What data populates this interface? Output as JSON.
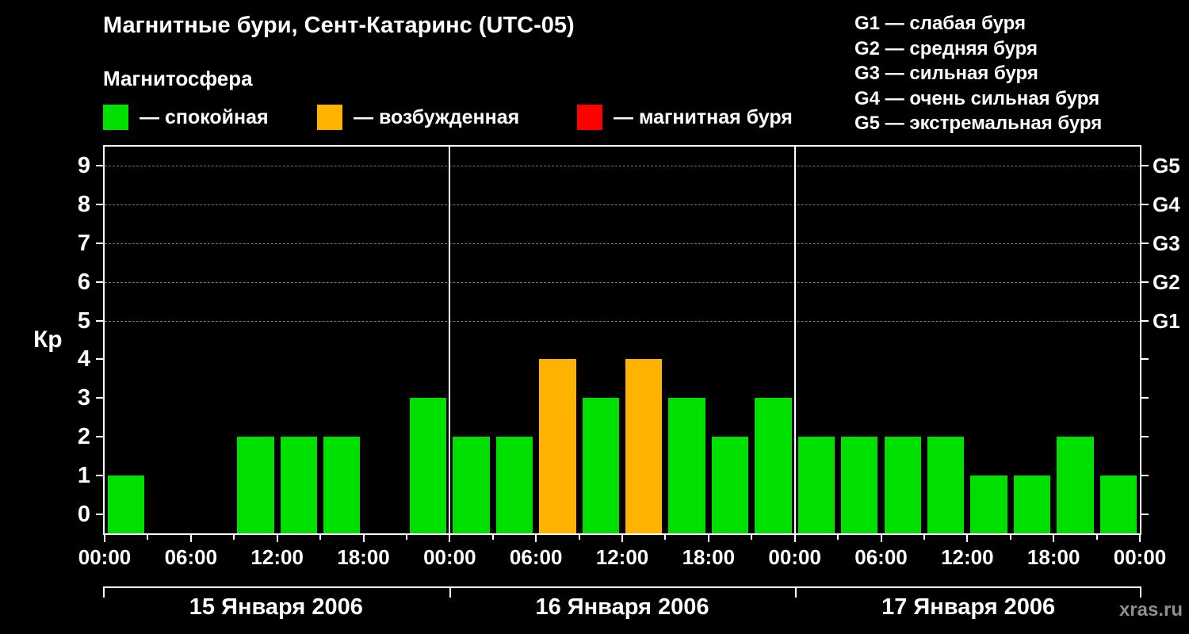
{
  "title": "Магнитные бури, Сент-Катаринс (UTC-05)",
  "subtitle": "Магнитосфера",
  "legend": [
    {
      "label": "— спокойная",
      "color": "#00e000"
    },
    {
      "label": "— возбужденная",
      "color": "#ffb300"
    },
    {
      "label": "— магнитная буря",
      "color": "#ff0000"
    }
  ],
  "g_scale": [
    {
      "code": "G1",
      "kp": 5,
      "label": "G1 — слабая буря"
    },
    {
      "code": "G2",
      "kp": 6,
      "label": "G2 — средняя буря"
    },
    {
      "code": "G3",
      "kp": 7,
      "label": "G3 — сильная буря"
    },
    {
      "code": "G4",
      "kp": 8,
      "label": "G4 — очень сильная буря"
    },
    {
      "code": "G5",
      "kp": 9,
      "label": "G5 — экстремальная буря"
    }
  ],
  "watermark": "xras.ru",
  "chart_data": {
    "type": "bar",
    "title": "Магнитные бури, Сент-Катаринс (UTC-05)",
    "ylabel": "Кр",
    "ylim": [
      0,
      9
    ],
    "yticks": [
      0,
      1,
      2,
      3,
      4,
      5,
      6,
      7,
      8,
      9
    ],
    "hours_per_bar": 3,
    "x_tick_labels": [
      "00:00",
      "06:00",
      "12:00",
      "18:00",
      "00:00",
      "06:00",
      "12:00",
      "18:00",
      "00:00",
      "06:00",
      "12:00",
      "18:00",
      "00:00"
    ],
    "days": [
      "15 Января 2006",
      "16 Января 2006",
      "17 Января 2006"
    ],
    "values": [
      1,
      0,
      0,
      2,
      2,
      2,
      0,
      3,
      2,
      2,
      4,
      3,
      4,
      3,
      2,
      3,
      2,
      2,
      2,
      2,
      1,
      1,
      2,
      1
    ],
    "grid": "dashed horizontal lines at Kp 5-9",
    "legend_position": "top"
  }
}
